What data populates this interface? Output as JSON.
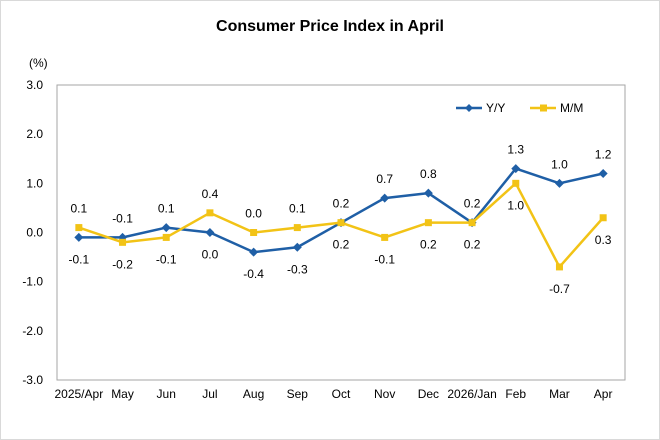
{
  "chart_data": {
    "type": "line",
    "title": "Consumer Price Index in April",
    "unit_label": "(%)",
    "categories": [
      "2025/Apr",
      "May",
      "Jun",
      "Jul",
      "Aug",
      "Sep",
      "Oct",
      "Nov",
      "Dec",
      "2026/Jan",
      "Feb",
      "Mar",
      "Apr"
    ],
    "ylim": [
      -3.0,
      3.0
    ],
    "yticks": [
      "3.0",
      "2.0",
      "1.0",
      "0.0",
      "-1.0",
      "-2.0",
      "-3.0"
    ],
    "grid": false,
    "legend_position": "top-right",
    "series": [
      {
        "name": "Y/Y",
        "color": "#1f5fa6",
        "marker": "diamond",
        "values": [
          -0.1,
          -0.1,
          0.1,
          0.0,
          -0.4,
          -0.3,
          0.2,
          0.7,
          0.8,
          0.2,
          1.3,
          1.0,
          1.2
        ],
        "labels": [
          "-0.1",
          "-0.1",
          "0.1",
          "0.0",
          "-0.4",
          "-0.3",
          "0.2",
          "0.7",
          "0.8",
          "0.2",
          "1.3",
          "1.0",
          "1.2"
        ]
      },
      {
        "name": "M/M",
        "color": "#f2c316",
        "marker": "square",
        "values": [
          0.1,
          -0.2,
          -0.1,
          0.4,
          0.0,
          0.1,
          0.2,
          -0.1,
          0.2,
          0.2,
          1.0,
          -0.7,
          0.3
        ],
        "labels": [
          "0.1",
          "-0.2",
          "-0.1",
          "0.4",
          "0.0",
          "0.1",
          "0.2",
          "-0.1",
          "0.2",
          "0.2",
          "1.0",
          "-0.7",
          "0.3"
        ]
      }
    ]
  }
}
